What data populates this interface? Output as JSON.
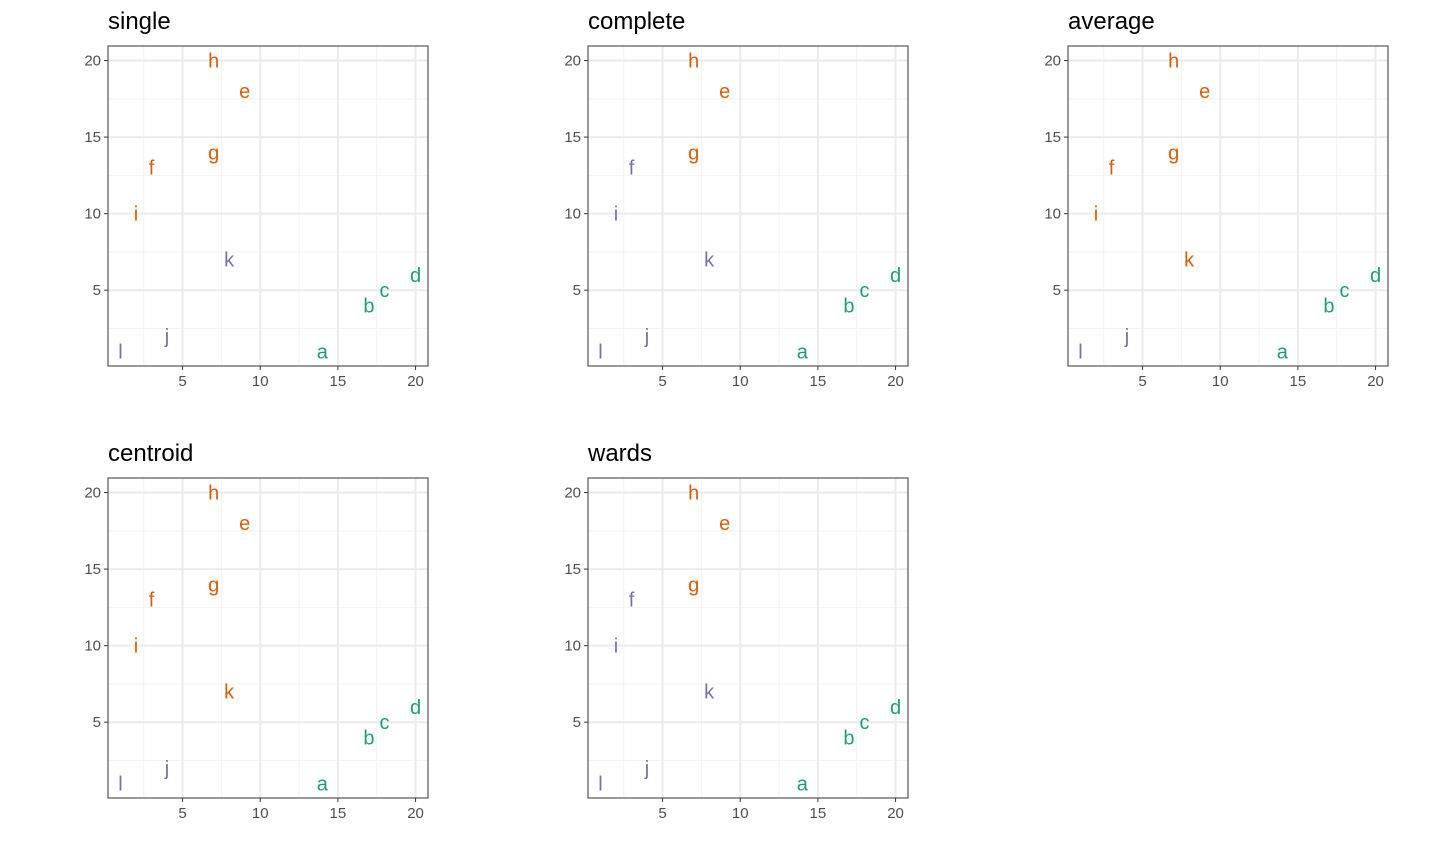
{
  "chart_data": [
    {
      "type": "scatter",
      "title": "single",
      "xlim": [
        0.2,
        20.8
      ],
      "ylim": [
        0.05,
        20.95
      ],
      "x_ticks": [
        5,
        10,
        15,
        20
      ],
      "y_ticks": [
        5,
        10,
        15,
        20
      ],
      "grid": true,
      "points": [
        {
          "label": "a",
          "x": 14,
          "y": 1,
          "cluster": 1
        },
        {
          "label": "b",
          "x": 17,
          "y": 4,
          "cluster": 1
        },
        {
          "label": "c",
          "x": 18,
          "y": 5,
          "cluster": 1
        },
        {
          "label": "d",
          "x": 20,
          "y": 6,
          "cluster": 1
        },
        {
          "label": "e",
          "x": 9,
          "y": 18,
          "cluster": 2
        },
        {
          "label": "f",
          "x": 3,
          "y": 13,
          "cluster": 2
        },
        {
          "label": "g",
          "x": 7,
          "y": 14,
          "cluster": 2
        },
        {
          "label": "h",
          "x": 7,
          "y": 20,
          "cluster": 2
        },
        {
          "label": "i",
          "x": 2,
          "y": 10,
          "cluster": 2
        },
        {
          "label": "j",
          "x": 4,
          "y": 2,
          "cluster": 3
        },
        {
          "label": "k",
          "x": 8,
          "y": 7,
          "cluster": 3
        },
        {
          "label": "l",
          "x": 1,
          "y": 1,
          "cluster": 3
        }
      ]
    },
    {
      "type": "scatter",
      "title": "complete",
      "xlim": [
        0.2,
        20.8
      ],
      "ylim": [
        0.05,
        20.95
      ],
      "x_ticks": [
        5,
        10,
        15,
        20
      ],
      "y_ticks": [
        5,
        10,
        15,
        20
      ],
      "grid": true,
      "points": [
        {
          "label": "a",
          "x": 14,
          "y": 1,
          "cluster": 1
        },
        {
          "label": "b",
          "x": 17,
          "y": 4,
          "cluster": 1
        },
        {
          "label": "c",
          "x": 18,
          "y": 5,
          "cluster": 1
        },
        {
          "label": "d",
          "x": 20,
          "y": 6,
          "cluster": 1
        },
        {
          "label": "e",
          "x": 9,
          "y": 18,
          "cluster": 2
        },
        {
          "label": "f",
          "x": 3,
          "y": 13,
          "cluster": 3
        },
        {
          "label": "g",
          "x": 7,
          "y": 14,
          "cluster": 2
        },
        {
          "label": "h",
          "x": 7,
          "y": 20,
          "cluster": 2
        },
        {
          "label": "i",
          "x": 2,
          "y": 10,
          "cluster": 3
        },
        {
          "label": "j",
          "x": 4,
          "y": 2,
          "cluster": 3
        },
        {
          "label": "k",
          "x": 8,
          "y": 7,
          "cluster": 3
        },
        {
          "label": "l",
          "x": 1,
          "y": 1,
          "cluster": 3
        }
      ]
    },
    {
      "type": "scatter",
      "title": "average",
      "xlim": [
        0.2,
        20.8
      ],
      "ylim": [
        0.05,
        20.95
      ],
      "x_ticks": [
        5,
        10,
        15,
        20
      ],
      "y_ticks": [
        5,
        10,
        15,
        20
      ],
      "grid": true,
      "points": [
        {
          "label": "a",
          "x": 14,
          "y": 1,
          "cluster": 1
        },
        {
          "label": "b",
          "x": 17,
          "y": 4,
          "cluster": 1
        },
        {
          "label": "c",
          "x": 18,
          "y": 5,
          "cluster": 1
        },
        {
          "label": "d",
          "x": 20,
          "y": 6,
          "cluster": 1
        },
        {
          "label": "e",
          "x": 9,
          "y": 18,
          "cluster": 2
        },
        {
          "label": "f",
          "x": 3,
          "y": 13,
          "cluster": 2
        },
        {
          "label": "g",
          "x": 7,
          "y": 14,
          "cluster": 2
        },
        {
          "label": "h",
          "x": 7,
          "y": 20,
          "cluster": 2
        },
        {
          "label": "i",
          "x": 2,
          "y": 10,
          "cluster": 2
        },
        {
          "label": "j",
          "x": 4,
          "y": 2,
          "cluster": 3
        },
        {
          "label": "k",
          "x": 8,
          "y": 7,
          "cluster": 2
        },
        {
          "label": "l",
          "x": 1,
          "y": 1,
          "cluster": 3
        }
      ]
    },
    {
      "type": "scatter",
      "title": "centroid",
      "xlim": [
        0.2,
        20.8
      ],
      "ylim": [
        0.05,
        20.95
      ],
      "x_ticks": [
        5,
        10,
        15,
        20
      ],
      "y_ticks": [
        5,
        10,
        15,
        20
      ],
      "grid": true,
      "points": [
        {
          "label": "a",
          "x": 14,
          "y": 1,
          "cluster": 1
        },
        {
          "label": "b",
          "x": 17,
          "y": 4,
          "cluster": 1
        },
        {
          "label": "c",
          "x": 18,
          "y": 5,
          "cluster": 1
        },
        {
          "label": "d",
          "x": 20,
          "y": 6,
          "cluster": 1
        },
        {
          "label": "e",
          "x": 9,
          "y": 18,
          "cluster": 2
        },
        {
          "label": "f",
          "x": 3,
          "y": 13,
          "cluster": 2
        },
        {
          "label": "g",
          "x": 7,
          "y": 14,
          "cluster": 2
        },
        {
          "label": "h",
          "x": 7,
          "y": 20,
          "cluster": 2
        },
        {
          "label": "i",
          "x": 2,
          "y": 10,
          "cluster": 2
        },
        {
          "label": "j",
          "x": 4,
          "y": 2,
          "cluster": 3
        },
        {
          "label": "k",
          "x": 8,
          "y": 7,
          "cluster": 2
        },
        {
          "label": "l",
          "x": 1,
          "y": 1,
          "cluster": 3
        }
      ]
    },
    {
      "type": "scatter",
      "title": "wards",
      "xlim": [
        0.2,
        20.8
      ],
      "ylim": [
        0.05,
        20.95
      ],
      "x_ticks": [
        5,
        10,
        15,
        20
      ],
      "y_ticks": [
        5,
        10,
        15,
        20
      ],
      "grid": true,
      "points": [
        {
          "label": "a",
          "x": 14,
          "y": 1,
          "cluster": 1
        },
        {
          "label": "b",
          "x": 17,
          "y": 4,
          "cluster": 1
        },
        {
          "label": "c",
          "x": 18,
          "y": 5,
          "cluster": 1
        },
        {
          "label": "d",
          "x": 20,
          "y": 6,
          "cluster": 1
        },
        {
          "label": "e",
          "x": 9,
          "y": 18,
          "cluster": 2
        },
        {
          "label": "f",
          "x": 3,
          "y": 13,
          "cluster": 3
        },
        {
          "label": "g",
          "x": 7,
          "y": 14,
          "cluster": 2
        },
        {
          "label": "h",
          "x": 7,
          "y": 20,
          "cluster": 2
        },
        {
          "label": "i",
          "x": 2,
          "y": 10,
          "cluster": 3
        },
        {
          "label": "j",
          "x": 4,
          "y": 2,
          "cluster": 3
        },
        {
          "label": "k",
          "x": 8,
          "y": 7,
          "cluster": 3
        },
        {
          "label": "l",
          "x": 1,
          "y": 1,
          "cluster": 3
        }
      ]
    }
  ],
  "cluster_colors": {
    "1": "#1b9e77",
    "2": "#d95f02",
    "3": "#7570b3"
  },
  "style": {
    "grid_major": "#ebebeb",
    "grid_minor": "#f2f2f2",
    "panel_border": "#333333",
    "tick_text": "#4d4d4d"
  }
}
